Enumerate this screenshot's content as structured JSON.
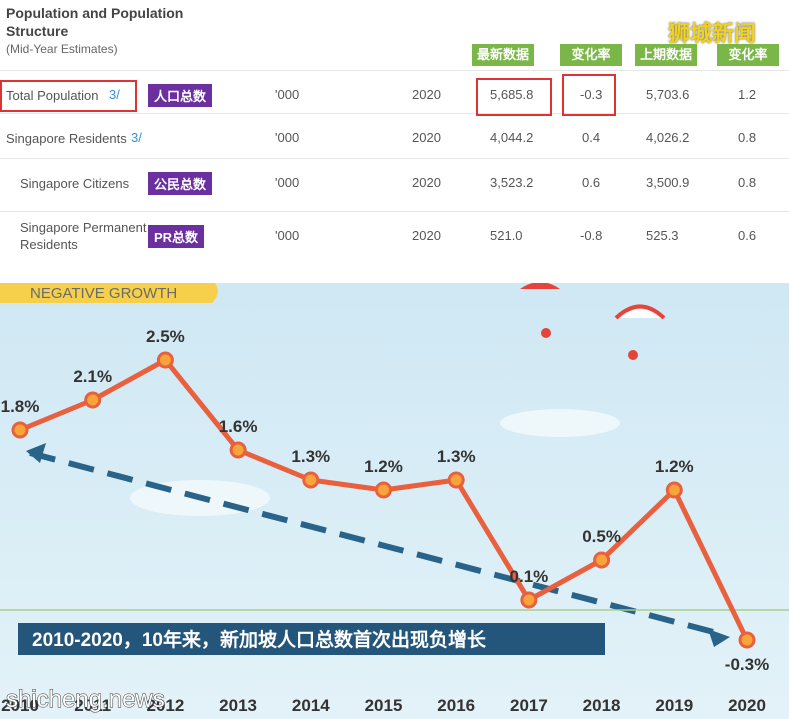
{
  "table": {
    "title": "Population and Population Structure",
    "subtitle": "(Mid-Year Estimates)",
    "headers": [
      "最新数据",
      "变化率",
      "上期数据",
      "变化率"
    ],
    "watermark": "狮城新闻",
    "rows": [
      {
        "label": "Total Population",
        "note": "3/",
        "tag": "人口总数",
        "unit": "'000",
        "year": "2020",
        "latest": "5,685.8",
        "change": "-0.3",
        "previous": "5,703.6",
        "prev_change": "1.2"
      },
      {
        "label": "Singapore Residents",
        "note": "3/",
        "unit": "'000",
        "year": "2020",
        "latest": "4,044.2",
        "change": "0.4",
        "previous": "4,026.2",
        "prev_change": "0.8"
      },
      {
        "label": "Singapore Citizens",
        "tag": "公民总数",
        "unit": "'000",
        "year": "2020",
        "latest": "3,523.2",
        "change": "0.6",
        "previous": "3,500.9",
        "prev_change": "0.8"
      },
      {
        "label": "Singapore Permanent Residents",
        "tag": "PR总数",
        "unit": "'000",
        "year": "2020",
        "latest": "521.0",
        "change": "-0.8",
        "previous": "525.3",
        "prev_change": "0.6"
      }
    ]
  },
  "chart_data": {
    "type": "line",
    "badge": "NEGATIVE GROWTH",
    "banner": "2010-2020，10年来，新加坡人口总数首次出现负增长",
    "watermark": "shicheng.news",
    "categories": [
      "2010",
      "2011",
      "2012",
      "2013",
      "2014",
      "2015",
      "2016",
      "2017",
      "2018",
      "2019",
      "2020"
    ],
    "values": [
      1.8,
      2.1,
      2.5,
      1.6,
      1.3,
      1.2,
      1.3,
      0.1,
      0.5,
      1.2,
      -0.3
    ],
    "value_labels": [
      "1.8%",
      "2.1%",
      "2.5%",
      "1.6%",
      "1.3%",
      "1.2%",
      "1.3%",
      "0.1%",
      "0.5%",
      "1.2%",
      "-0.3%"
    ],
    "color": "#e8603e",
    "ylim": [
      -1,
      3
    ]
  }
}
